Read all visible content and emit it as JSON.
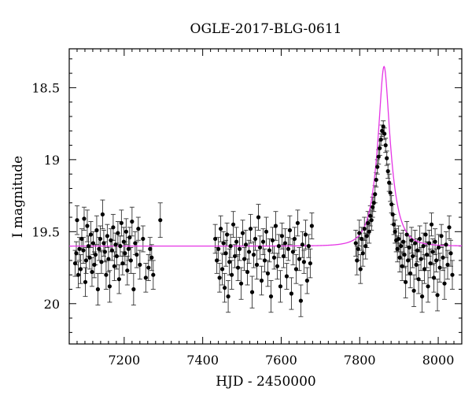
{
  "chart_data": {
    "type": "scatter",
    "title": "OGLE-2017-BLG-0611",
    "xlabel": "HJD - 2450000",
    "ylabel": "I magnitude",
    "xlim": [
      7060,
      8060
    ],
    "ylim": [
      20.28,
      18.23
    ],
    "y_inverted": true,
    "x_ticks": [
      7200,
      7400,
      7600,
      7800,
      8000
    ],
    "y_ticks": [
      18.5,
      19,
      19.5,
      20
    ],
    "x_tick_labels": [
      "7200",
      "7400",
      "7600",
      "7800",
      "8000"
    ],
    "y_tick_labels": [
      "18.5",
      "19",
      "19.5",
      "20"
    ],
    "grid": false,
    "colors": {
      "points": "#000000",
      "errorbars": "#333333",
      "model": "#e535e5"
    },
    "series": [
      {
        "kind": "points-with-errorbars",
        "points": [
          [
            7075,
            19.72,
            0.09
          ],
          [
            7078,
            19.65,
            0.08
          ],
          [
            7080,
            19.42,
            0.1
          ],
          [
            7083,
            19.8,
            0.09
          ],
          [
            7086,
            19.62,
            0.08
          ],
          [
            7089,
            19.76,
            0.1
          ],
          [
            7092,
            19.55,
            0.07
          ],
          [
            7096,
            19.63,
            0.09
          ],
          [
            7098,
            19.41,
            0.08
          ],
          [
            7101,
            19.85,
            0.1
          ],
          [
            7103,
            19.7,
            0.09
          ],
          [
            7106,
            19.46,
            0.11
          ],
          [
            7109,
            19.6,
            0.07
          ],
          [
            7112,
            19.68,
            0.08
          ],
          [
            7115,
            19.52,
            0.09
          ],
          [
            7118,
            19.78,
            0.1
          ],
          [
            7121,
            19.58,
            0.08
          ],
          [
            7124,
            19.73,
            0.09
          ],
          [
            7127,
            19.66,
            0.07
          ],
          [
            7130,
            19.49,
            0.1
          ],
          [
            7133,
            19.9,
            0.11
          ],
          [
            7136,
            19.62,
            0.08
          ],
          [
            7139,
            19.55,
            0.09
          ],
          [
            7142,
            19.71,
            0.08
          ],
          [
            7145,
            19.38,
            0.1
          ],
          [
            7148,
            19.58,
            0.09
          ],
          [
            7151,
            19.64,
            0.07
          ],
          [
            7154,
            19.8,
            0.1
          ],
          [
            7157,
            19.53,
            0.08
          ],
          [
            7160,
            19.69,
            0.09
          ],
          [
            7163,
            19.88,
            0.11
          ],
          [
            7166,
            19.56,
            0.08
          ],
          [
            7169,
            19.63,
            0.07
          ],
          [
            7172,
            19.47,
            0.09
          ],
          [
            7175,
            19.74,
            0.1
          ],
          [
            7178,
            19.59,
            0.08
          ],
          [
            7181,
            19.67,
            0.09
          ],
          [
            7184,
            19.51,
            0.08
          ],
          [
            7187,
            19.83,
            0.1
          ],
          [
            7190,
            19.6,
            0.07
          ],
          [
            7193,
            19.44,
            0.09
          ],
          [
            7196,
            19.72,
            0.08
          ],
          [
            7199,
            19.57,
            0.1
          ],
          [
            7202,
            19.65,
            0.08
          ],
          [
            7205,
            19.5,
            0.09
          ],
          [
            7208,
            19.77,
            0.1
          ],
          [
            7211,
            19.62,
            0.08
          ],
          [
            7214,
            19.54,
            0.07
          ],
          [
            7217,
            19.7,
            0.09
          ],
          [
            7220,
            19.43,
            0.1
          ],
          [
            7224,
            19.9,
            0.11
          ],
          [
            7228,
            19.58,
            0.08
          ],
          [
            7232,
            19.66,
            0.09
          ],
          [
            7236,
            19.48,
            0.08
          ],
          [
            7240,
            19.73,
            0.1
          ],
          [
            7248,
            19.55,
            0.09
          ],
          [
            7255,
            19.82,
            0.1
          ],
          [
            7262,
            19.75,
            0.09
          ],
          [
            7266,
            19.62,
            0.08
          ],
          [
            7270,
            19.68,
            0.09
          ],
          [
            7274,
            19.8,
            0.1
          ],
          [
            7292,
            19.42,
            0.12
          ],
          [
            7432,
            19.55,
            0.1
          ],
          [
            7436,
            19.7,
            0.09
          ],
          [
            7440,
            19.62,
            0.08
          ],
          [
            7443,
            19.82,
            0.1
          ],
          [
            7446,
            19.48,
            0.09
          ],
          [
            7450,
            19.76,
            0.11
          ],
          [
            7453,
            19.58,
            0.08
          ],
          [
            7456,
            19.89,
            0.1
          ],
          [
            7459,
            19.65,
            0.09
          ],
          [
            7462,
            19.52,
            0.08
          ],
          [
            7465,
            19.95,
            0.11
          ],
          [
            7468,
            19.71,
            0.09
          ],
          [
            7471,
            19.6,
            0.08
          ],
          [
            7474,
            19.8,
            0.1
          ],
          [
            7478,
            19.45,
            0.09
          ],
          [
            7482,
            19.67,
            0.08
          ],
          [
            7486,
            19.57,
            0.1
          ],
          [
            7490,
            19.75,
            0.09
          ],
          [
            7494,
            19.62,
            0.08
          ],
          [
            7498,
            19.86,
            0.11
          ],
          [
            7502,
            19.51,
            0.09
          ],
          [
            7506,
            19.69,
            0.08
          ],
          [
            7510,
            19.59,
            0.1
          ],
          [
            7514,
            19.78,
            0.09
          ],
          [
            7518,
            19.64,
            0.08
          ],
          [
            7522,
            19.48,
            0.1
          ],
          [
            7526,
            19.92,
            0.11
          ],
          [
            7530,
            19.66,
            0.09
          ],
          [
            7534,
            19.55,
            0.08
          ],
          [
            7538,
            19.73,
            0.1
          ],
          [
            7542,
            19.4,
            0.09
          ],
          [
            7546,
            19.61,
            0.08
          ],
          [
            7550,
            19.84,
            0.1
          ],
          [
            7554,
            19.57,
            0.09
          ],
          [
            7558,
            19.7,
            0.08
          ],
          [
            7562,
            19.5,
            0.1
          ],
          [
            7566,
            19.79,
            0.09
          ],
          [
            7570,
            19.63,
            0.08
          ],
          [
            7574,
            19.95,
            0.11
          ],
          [
            7578,
            19.56,
            0.09
          ],
          [
            7582,
            19.68,
            0.08
          ],
          [
            7586,
            19.46,
            0.1
          ],
          [
            7590,
            19.74,
            0.09
          ],
          [
            7594,
            19.6,
            0.08
          ],
          [
            7598,
            19.88,
            0.11
          ],
          [
            7602,
            19.53,
            0.09
          ],
          [
            7606,
            19.67,
            0.08
          ],
          [
            7610,
            19.58,
            0.1
          ],
          [
            7614,
            19.81,
            0.09
          ],
          [
            7618,
            19.62,
            0.08
          ],
          [
            7622,
            19.49,
            0.1
          ],
          [
            7626,
            19.93,
            0.11
          ],
          [
            7630,
            19.64,
            0.09
          ],
          [
            7634,
            19.55,
            0.08
          ],
          [
            7638,
            19.76,
            0.1
          ],
          [
            7642,
            19.44,
            0.09
          ],
          [
            7646,
            19.69,
            0.08
          ],
          [
            7650,
            19.98,
            0.11
          ],
          [
            7654,
            19.59,
            0.09
          ],
          [
            7658,
            19.71,
            0.08
          ],
          [
            7662,
            19.52,
            0.1
          ],
          [
            7666,
            19.84,
            0.09
          ],
          [
            7670,
            19.6,
            0.08
          ],
          [
            7674,
            19.72,
            0.1
          ],
          [
            7678,
            19.46,
            0.09
          ],
          [
            7790,
            19.58,
            0.09
          ],
          [
            7793,
            19.7,
            0.1
          ],
          [
            7796,
            19.62,
            0.08
          ],
          [
            7799,
            19.51,
            0.09
          ],
          [
            7802,
            19.76,
            0.1
          ],
          [
            7805,
            19.55,
            0.08
          ],
          [
            7808,
            19.65,
            0.09
          ],
          [
            7812,
            19.48,
            0.08
          ],
          [
            7815,
            19.6,
            0.09
          ],
          [
            7818,
            19.53,
            0.08
          ],
          [
            7821,
            19.44,
            0.08
          ],
          [
            7824,
            19.5,
            0.08
          ],
          [
            7827,
            19.39,
            0.07
          ],
          [
            7830,
            19.42,
            0.07
          ],
          [
            7833,
            19.33,
            0.07
          ],
          [
            7836,
            19.3,
            0.06
          ],
          [
            7839,
            19.24,
            0.06
          ],
          [
            7842,
            19.14,
            0.05
          ],
          [
            7845,
            19.05,
            0.05
          ],
          [
            7848,
            18.98,
            0.05
          ],
          [
            7851,
            18.92,
            0.05
          ],
          [
            7854,
            18.86,
            0.04
          ],
          [
            7857,
            18.8,
            0.04
          ],
          [
            7860,
            18.77,
            0.04
          ],
          [
            7863,
            18.82,
            0.04
          ],
          [
            7866,
            18.9,
            0.05
          ],
          [
            7869,
            18.99,
            0.05
          ],
          [
            7872,
            19.08,
            0.05
          ],
          [
            7875,
            19.16,
            0.06
          ],
          [
            7878,
            19.23,
            0.06
          ],
          [
            7881,
            19.31,
            0.06
          ],
          [
            7884,
            19.38,
            0.07
          ],
          [
            7887,
            19.45,
            0.07
          ],
          [
            7890,
            19.5,
            0.08
          ],
          [
            7893,
            19.56,
            0.08
          ],
          [
            7896,
            19.62,
            0.09
          ],
          [
            7899,
            19.55,
            0.09
          ],
          [
            7902,
            19.68,
            0.1
          ],
          [
            7905,
            19.6,
            0.09
          ],
          [
            7908,
            19.74,
            0.1
          ],
          [
            7911,
            19.57,
            0.08
          ],
          [
            7914,
            19.66,
            0.09
          ],
          [
            7917,
            19.85,
            0.11
          ],
          [
            7920,
            19.52,
            0.09
          ],
          [
            7923,
            19.7,
            0.1
          ],
          [
            7926,
            19.61,
            0.08
          ],
          [
            7929,
            19.79,
            0.1
          ],
          [
            7932,
            19.56,
            0.09
          ],
          [
            7935,
            19.67,
            0.08
          ],
          [
            7938,
            19.91,
            0.11
          ],
          [
            7941,
            19.58,
            0.09
          ],
          [
            7944,
            19.73,
            0.1
          ],
          [
            7947,
            19.63,
            0.08
          ],
          [
            7950,
            19.83,
            0.1
          ],
          [
            7953,
            19.55,
            0.09
          ],
          [
            7956,
            19.69,
            0.08
          ],
          [
            7959,
            19.95,
            0.11
          ],
          [
            7962,
            19.6,
            0.09
          ],
          [
            7965,
            19.76,
            0.1
          ],
          [
            7968,
            19.52,
            0.08
          ],
          [
            7971,
            19.66,
            0.09
          ],
          [
            7974,
            19.88,
            0.11
          ],
          [
            7977,
            19.58,
            0.09
          ],
          [
            7980,
            19.72,
            0.1
          ],
          [
            7983,
            19.45,
            0.08
          ],
          [
            7986,
            19.64,
            0.09
          ],
          [
            7989,
            19.82,
            0.1
          ],
          [
            7992,
            19.57,
            0.09
          ],
          [
            7995,
            19.7,
            0.08
          ],
          [
            7998,
            19.94,
            0.11
          ],
          [
            8001,
            19.61,
            0.09
          ],
          [
            8004,
            19.75,
            0.1
          ],
          [
            8008,
            19.53,
            0.08
          ],
          [
            8012,
            19.68,
            0.09
          ],
          [
            8016,
            19.86,
            0.11
          ],
          [
            8020,
            19.59,
            0.09
          ],
          [
            8024,
            19.73,
            0.1
          ],
          [
            8028,
            19.47,
            0.08
          ],
          [
            8032,
            19.65,
            0.09
          ],
          [
            8036,
            19.8,
            0.1
          ]
        ]
      },
      {
        "kind": "model-curve",
        "baseline": 19.6,
        "t0": 7862,
        "u0": 0.33,
        "tE": 34
      }
    ]
  }
}
